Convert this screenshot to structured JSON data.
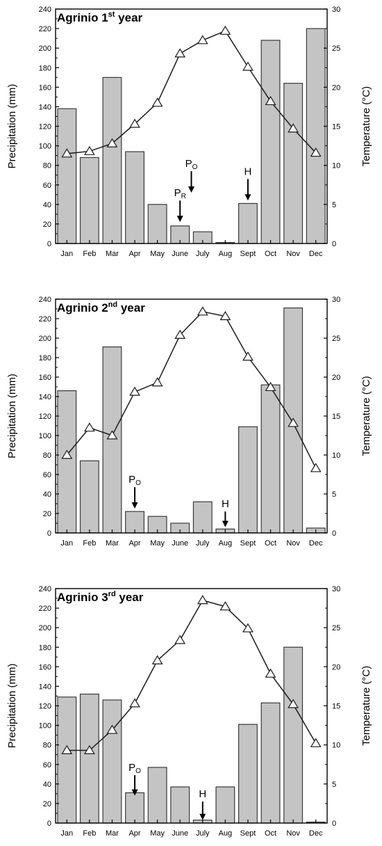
{
  "chart_data": [
    {
      "type": "bar",
      "title": "Agrinio 1",
      "title_sup": "st",
      "title_rest": " year",
      "xlabel": "",
      "ylabel": "Precipitation (mm)",
      "y2label": "Temperature (°C)",
      "categories": [
        "Jan",
        "Feb",
        "Mar",
        "Apr",
        "May",
        "June",
        "July",
        "Aug",
        "Sept",
        "Oct",
        "Nov",
        "Dec"
      ],
      "ylim": [
        0,
        240
      ],
      "y2lim": [
        0,
        30
      ],
      "yticks": [
        "0",
        "20",
        "40",
        "60",
        "80",
        "100",
        "120",
        "140",
        "160",
        "180",
        "200",
        "220",
        "240"
      ],
      "y2ticks": [
        "0",
        "5",
        "10",
        "15",
        "20",
        "25",
        "30"
      ],
      "series": [
        {
          "kind": "bar",
          "axis": "left",
          "values": [
            138,
            88,
            170,
            94,
            40,
            18,
            12,
            1,
            41,
            208,
            164,
            220
          ]
        },
        {
          "kind": "line",
          "axis": "right",
          "marker": "triangle",
          "values": [
            11.5,
            11.8,
            12.8,
            15.3,
            18,
            24.3,
            26,
            27.2,
            22.6,
            18.2,
            14.7,
            11.6
          ]
        }
      ],
      "annotations": [
        {
          "label": "P",
          "sub": "R",
          "x": "June",
          "arrow_from": 44,
          "arrow_to": 22
        },
        {
          "label": "P",
          "sub": "O",
          "x": "June-July",
          "arrow_from": 74,
          "arrow_to": 52
        },
        {
          "label": "H",
          "x": "Sept",
          "arrow_from": 66,
          "arrow_to": 44
        }
      ]
    },
    {
      "type": "bar",
      "title": "Agrinio 2",
      "title_sup": "nd",
      "title_rest": " year",
      "xlabel": "",
      "ylabel": "Precipitation (mm)",
      "y2label": "Temperature (°C)",
      "categories": [
        "Jan",
        "Feb",
        "Mar",
        "Apr",
        "May",
        "June",
        "July",
        "Aug",
        "Sept",
        "Oct",
        "Nov",
        "Dec"
      ],
      "ylim": [
        0,
        240
      ],
      "y2lim": [
        0,
        30
      ],
      "yticks": [
        "0",
        "20",
        "40",
        "60",
        "80",
        "100",
        "120",
        "140",
        "160",
        "180",
        "200",
        "220",
        "240"
      ],
      "y2ticks": [
        "0",
        "5",
        "10",
        "15",
        "20",
        "25",
        "30"
      ],
      "series": [
        {
          "kind": "bar",
          "axis": "left",
          "values": [
            146,
            74,
            191,
            22,
            17,
            10,
            32,
            4,
            109,
            152,
            231,
            5
          ]
        },
        {
          "kind": "line",
          "axis": "right",
          "marker": "triangle",
          "values": [
            10,
            13.5,
            12.5,
            18.1,
            19.3,
            25.4,
            28.4,
            27.8,
            22.6,
            18.7,
            14.1,
            8.3
          ]
        }
      ],
      "annotations": [
        {
          "label": "P",
          "sub": "O",
          "x": "Apr",
          "arrow_from": 47,
          "arrow_to": 25
        },
        {
          "label": "H",
          "x": "Aug",
          "arrow_from": 22,
          "arrow_to": 6
        }
      ]
    },
    {
      "type": "bar",
      "title": "Agrinio 3",
      "title_sup": "rd",
      "title_rest": " year",
      "xlabel": "",
      "ylabel": "Precipitation (mm)",
      "y2label": "Temperature (°C)",
      "categories": [
        "Jan",
        "Feb",
        "Mar",
        "Apr",
        "May",
        "June",
        "July",
        "Aug",
        "Sept",
        "Oct",
        "Nov",
        "Dec"
      ],
      "ylim": [
        0,
        240
      ],
      "y2lim": [
        0,
        30
      ],
      "yticks": [
        "0",
        "20",
        "40",
        "60",
        "80",
        "100",
        "120",
        "140",
        "160",
        "180",
        "200",
        "220",
        "240"
      ],
      "y2ticks": [
        "0",
        "5",
        "10",
        "15",
        "20",
        "25",
        "30"
      ],
      "series": [
        {
          "kind": "bar",
          "axis": "left",
          "values": [
            129,
            132,
            126,
            31,
            57,
            37,
            3,
            37,
            101,
            123,
            180,
            1
          ]
        },
        {
          "kind": "line",
          "axis": "right",
          "marker": "triangle",
          "values": [
            9.3,
            9.3,
            11.9,
            15.3,
            20.8,
            23.4,
            28.5,
            27.7,
            24.9,
            19.1,
            15.2,
            10.2
          ]
        }
      ],
      "annotations": [
        {
          "label": "P",
          "sub": "O",
          "x": "Apr",
          "arrow_from": 49,
          "arrow_to": 28
        },
        {
          "label": "H",
          "x": "July",
          "arrow_from": 22,
          "arrow_to": 3
        }
      ]
    }
  ]
}
